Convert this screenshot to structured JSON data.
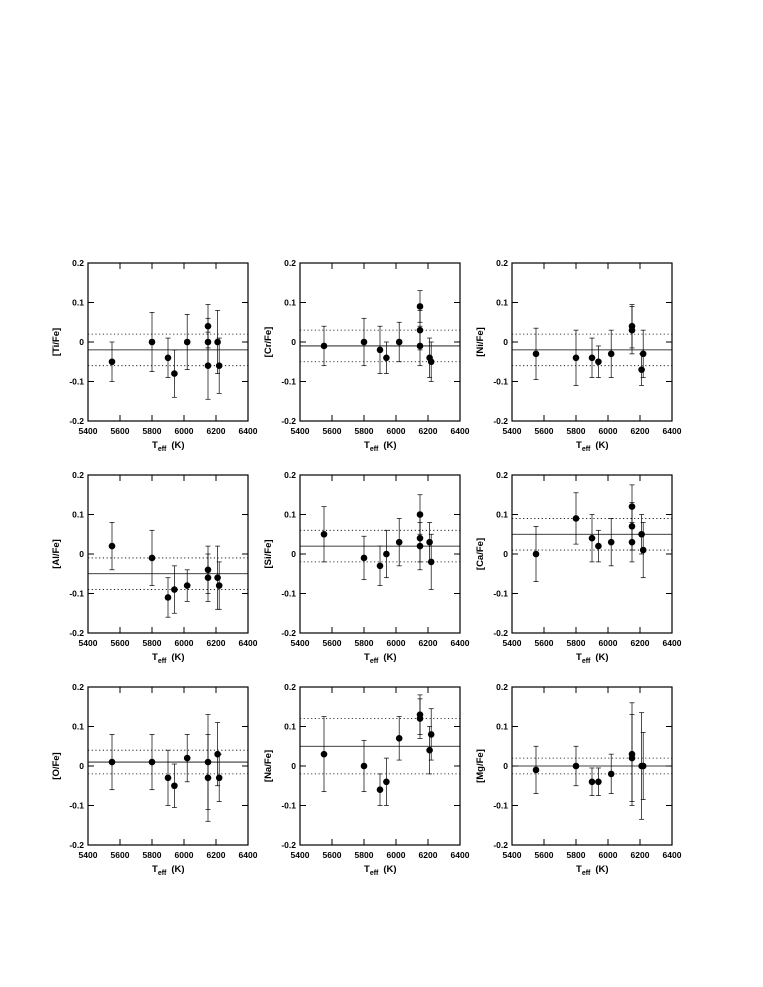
{
  "chart_data": [
    {
      "type": "scatter",
      "y_label": "[Ti/Fe]",
      "x_label": {
        "main": "T",
        "sub": "eff",
        "unit": "(K)"
      },
      "x": [
        5550,
        5800,
        5900,
        5940,
        6020,
        6150,
        6150,
        6150,
        6210,
        6220
      ],
      "y": [
        -0.05,
        0,
        -0.04,
        -0.08,
        0,
        0.04,
        0,
        -0.06,
        0,
        -0.06
      ],
      "yerr": [
        0.05,
        0.075,
        0.05,
        0.06,
        0.07,
        0.055,
        0.06,
        0.085,
        0.08,
        0.07
      ],
      "mean": -0.02,
      "band": [
        -0.06,
        0.02
      ],
      "xlim": [
        5400,
        6400
      ],
      "ylim": [
        -0.2,
        0.2
      ],
      "xticks": [
        5400,
        5600,
        5800,
        6000,
        6200,
        6400
      ],
      "yticks": [
        -0.2,
        -0.1,
        0,
        0.1,
        0.2
      ]
    },
    {
      "type": "scatter",
      "y_label": "[Cr/Fe]",
      "x_label": {
        "main": "T",
        "sub": "eff",
        "unit": "(K)"
      },
      "x": [
        5550,
        5800,
        5900,
        5940,
        6020,
        6150,
        6150,
        6150,
        6210,
        6220
      ],
      "y": [
        -0.01,
        0,
        -0.02,
        -0.04,
        0,
        0.09,
        0.03,
        -0.01,
        -0.04,
        -0.05
      ],
      "yerr": [
        0.05,
        0.06,
        0.06,
        0.04,
        0.05,
        0.04,
        0.05,
        0.05,
        0.05,
        0.05
      ],
      "mean": -0.01,
      "band": [
        -0.05,
        0.03
      ],
      "xlim": [
        5400,
        6400
      ],
      "ylim": [
        -0.2,
        0.2
      ],
      "xticks": [
        5400,
        5600,
        5800,
        6000,
        6200,
        6400
      ],
      "yticks": [
        -0.2,
        -0.1,
        0,
        0.1,
        0.2
      ]
    },
    {
      "type": "scatter",
      "y_label": "[Ni/Fe]",
      "x_label": {
        "main": "T",
        "sub": "eff",
        "unit": "(K)"
      },
      "x": [
        5550,
        5800,
        5900,
        5940,
        6020,
        6150,
        6150,
        6220,
        6210
      ],
      "y": [
        -0.03,
        -0.04,
        -0.04,
        -0.05,
        -0.03,
        0.04,
        0.03,
        -0.03,
        -0.07
      ],
      "yerr": [
        0.065,
        0.07,
        0.05,
        0.04,
        0.06,
        0.055,
        0.06,
        0.06,
        0.04
      ],
      "mean": -0.02,
      "band": [
        -0.06,
        0.02
      ],
      "xlim": [
        5400,
        6400
      ],
      "ylim": [
        -0.2,
        0.2
      ],
      "xticks": [
        5400,
        5600,
        5800,
        6000,
        6200,
        6400
      ],
      "yticks": [
        -0.2,
        -0.1,
        0,
        0.1,
        0.2
      ]
    },
    {
      "type": "scatter",
      "y_label": "[Al/Fe]",
      "x_label": {
        "main": "T",
        "sub": "eff",
        "unit": "(K)"
      },
      "x": [
        5550,
        5800,
        5900,
        5940,
        6020,
        6150,
        6150,
        6210,
        6220
      ],
      "y": [
        0.02,
        -0.01,
        -0.11,
        -0.09,
        -0.08,
        -0.04,
        -0.06,
        -0.06,
        -0.08
      ],
      "yerr": [
        0.06,
        0.07,
        0.05,
        0.06,
        0.04,
        0.06,
        0.06,
        0.08,
        0.06
      ],
      "mean": -0.05,
      "band": [
        -0.09,
        -0.01
      ],
      "xlim": [
        5400,
        6400
      ],
      "ylim": [
        -0.2,
        0.2
      ],
      "xticks": [
        5400,
        5600,
        5800,
        6000,
        6200,
        6400
      ],
      "yticks": [
        -0.2,
        -0.1,
        0,
        0.1,
        0.2
      ]
    },
    {
      "type": "scatter",
      "y_label": "[Si/Fe]",
      "x_label": {
        "main": "T",
        "sub": "eff",
        "unit": "(K)"
      },
      "x": [
        5550,
        5800,
        5900,
        5940,
        6020,
        6150,
        6150,
        6150,
        6210,
        6220
      ],
      "y": [
        0.05,
        -0.01,
        -0.03,
        0,
        0.03,
        0.1,
        0.04,
        0.02,
        0.03,
        -0.02
      ],
      "yerr": [
        0.07,
        0.055,
        0.05,
        0.06,
        0.06,
        0.05,
        0.06,
        0.06,
        0.05,
        0.07
      ],
      "mean": 0.02,
      "band": [
        -0.02,
        0.06
      ],
      "xlim": [
        5400,
        6400
      ],
      "ylim": [
        -0.2,
        0.2
      ],
      "xticks": [
        5400,
        5600,
        5800,
        6000,
        6200,
        6400
      ],
      "yticks": [
        -0.2,
        -0.1,
        0,
        0.1,
        0.2
      ]
    },
    {
      "type": "scatter",
      "y_label": "[Ca/Fe]",
      "x_label": {
        "main": "T",
        "sub": "eff",
        "unit": "(K)"
      },
      "x": [
        5550,
        5800,
        5900,
        5940,
        6020,
        6150,
        6150,
        6150,
        6210,
        6220
      ],
      "y": [
        0,
        0.09,
        0.04,
        0.02,
        0.03,
        0.12,
        0.07,
        0.03,
        0.05,
        0.01
      ],
      "yerr": [
        0.07,
        0.065,
        0.06,
        0.04,
        0.06,
        0.055,
        0.06,
        0.05,
        0.05,
        0.07
      ],
      "mean": 0.05,
      "band": [
        0.01,
        0.09
      ],
      "xlim": [
        5400,
        6400
      ],
      "ylim": [
        -0.2,
        0.2
      ],
      "xticks": [
        5400,
        5600,
        5800,
        6000,
        6200,
        6400
      ],
      "yticks": [
        -0.2,
        -0.1,
        0,
        0.1,
        0.2
      ]
    },
    {
      "type": "scatter",
      "y_label": "[O/Fe]",
      "x_label": {
        "main": "T",
        "sub": "eff",
        "unit": "(K)"
      },
      "x": [
        5550,
        5800,
        5900,
        5940,
        6020,
        6150,
        6150,
        6210,
        6220
      ],
      "y": [
        0.01,
        0.01,
        -0.03,
        -0.05,
        0.02,
        0.01,
        -0.03,
        0.03,
        -0.03
      ],
      "yerr": [
        0.07,
        0.07,
        0.07,
        0.055,
        0.06,
        0.12,
        0.11,
        0.08,
        0.06
      ],
      "mean": 0.01,
      "band": [
        -0.02,
        0.04
      ],
      "xlim": [
        5400,
        6400
      ],
      "ylim": [
        -0.2,
        0.2
      ],
      "xticks": [
        5400,
        5600,
        5800,
        6000,
        6200,
        6400
      ],
      "yticks": [
        -0.2,
        -0.1,
        0,
        0.1,
        0.2
      ]
    },
    {
      "type": "scatter",
      "y_label": "[Na/Fe]",
      "x_label": {
        "main": "T",
        "sub": "eff",
        "unit": "(K)"
      },
      "x": [
        5550,
        5800,
        5900,
        5940,
        6020,
        6150,
        6150,
        6210,
        6220
      ],
      "y": [
        0.03,
        0,
        -0.06,
        -0.04,
        0.07,
        0.13,
        0.12,
        0.04,
        0.08
      ],
      "yerr": [
        0.095,
        0.065,
        0.04,
        0.06,
        0.055,
        0.05,
        0.05,
        0.06,
        0.065
      ],
      "mean": 0.05,
      "band": [
        -0.02,
        0.12
      ],
      "xlim": [
        5400,
        6400
      ],
      "ylim": [
        -0.2,
        0.2
      ],
      "xticks": [
        5400,
        5600,
        5800,
        6000,
        6200,
        6400
      ],
      "yticks": [
        -0.2,
        -0.1,
        0,
        0.1,
        0.2
      ]
    },
    {
      "type": "scatter",
      "y_label": "[Mg/Fe]",
      "x_label": {
        "main": "T",
        "sub": "eff",
        "unit": "(K)"
      },
      "x": [
        5550,
        5800,
        5900,
        5940,
        6020,
        6150,
        6150,
        6210,
        6220
      ],
      "y": [
        -0.01,
        0,
        -0.04,
        -0.04,
        -0.02,
        0.03,
        0.02,
        0,
        0
      ],
      "yerr": [
        0.06,
        0.05,
        0.035,
        0.035,
        0.05,
        0.13,
        0.11,
        0.135,
        0.085
      ],
      "mean": 0,
      "band": [
        -0.02,
        0.02
      ],
      "xlim": [
        5400,
        6400
      ],
      "ylim": [
        -0.2,
        0.2
      ],
      "xticks": [
        5400,
        5600,
        5800,
        6000,
        6200,
        6400
      ],
      "yticks": [
        -0.2,
        -0.1,
        0,
        0.1,
        0.2
      ]
    }
  ]
}
